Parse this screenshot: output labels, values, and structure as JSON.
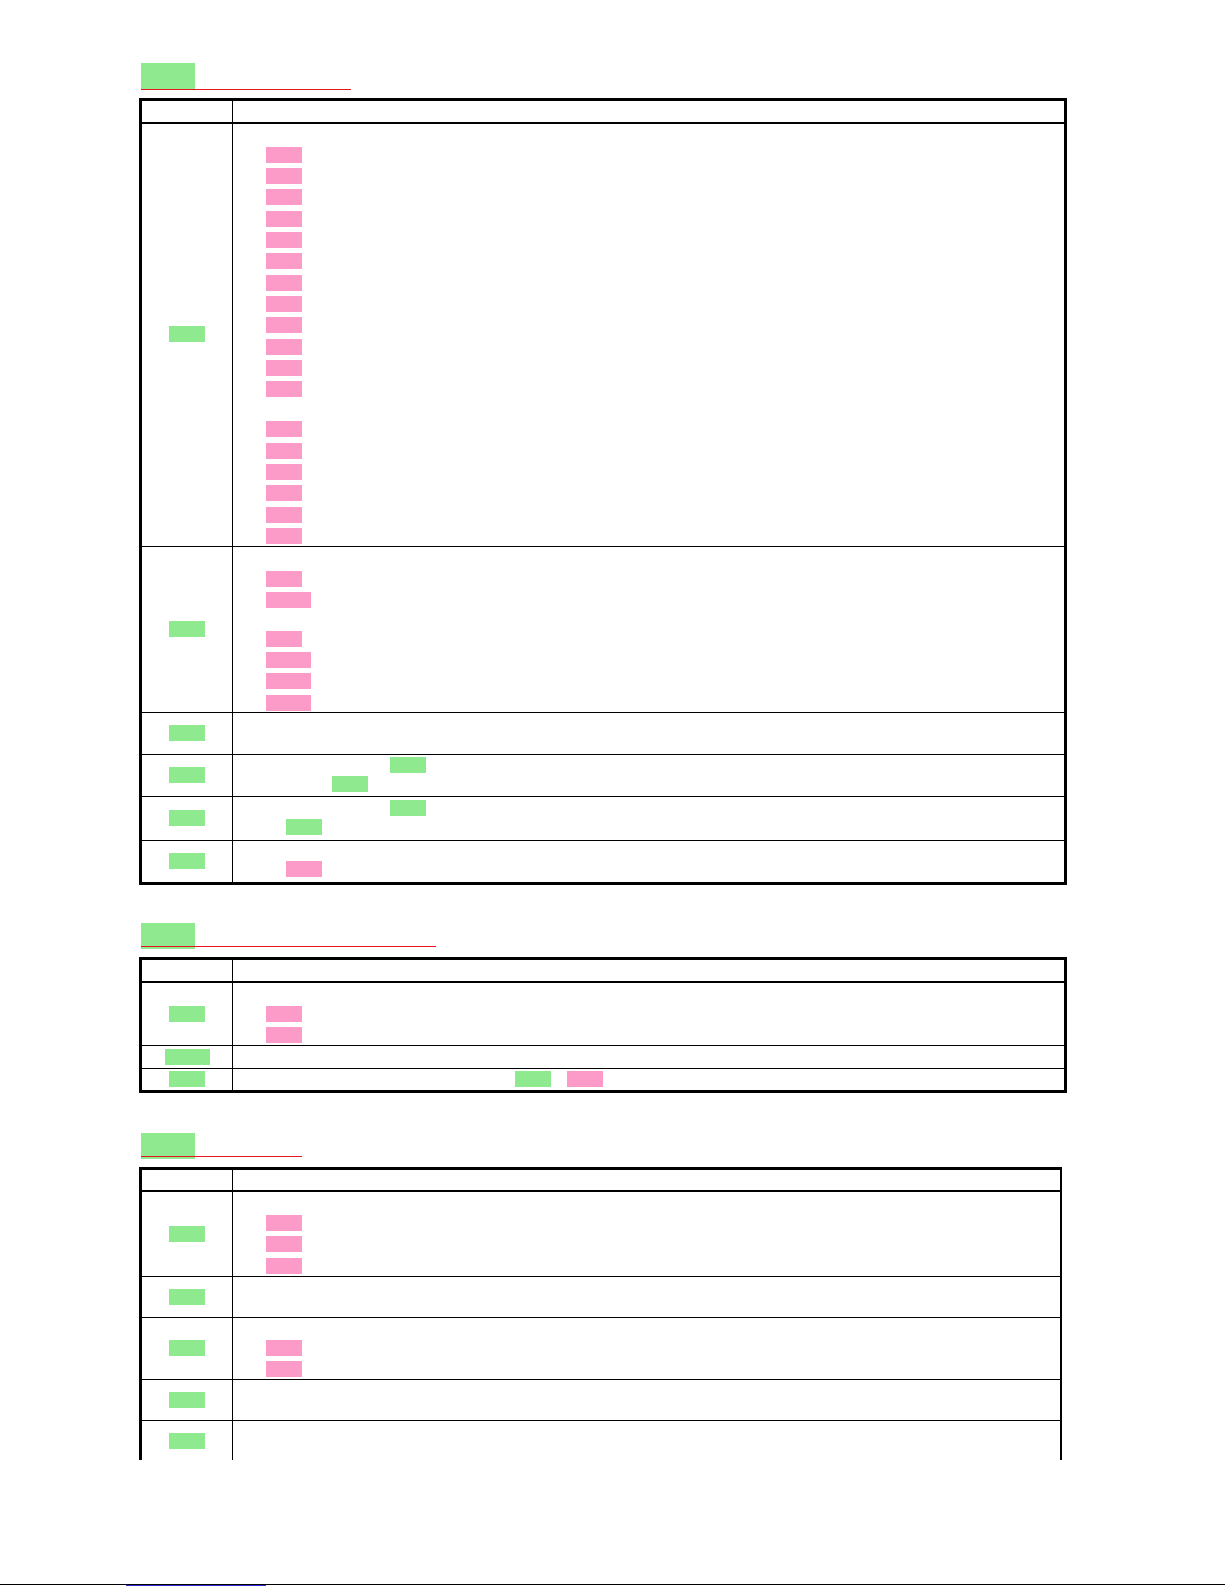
{
  "colors": {
    "green_highlight": "#8fea8f",
    "pink_highlight": "#fd9bc8",
    "heading_underline": "#e8141e",
    "footer_link": "#2a2ad8",
    "table_border": "#000000"
  },
  "sections": [
    {
      "heading": "",
      "header_row": {
        "col1": "",
        "col2": ""
      }
    },
    {
      "heading": "",
      "header_row": {
        "col1": "",
        "col2": ""
      }
    },
    {
      "heading": "",
      "header_row": {
        "col1": "",
        "col2": ""
      }
    }
  ],
  "footer": {
    "link_text": ""
  }
}
